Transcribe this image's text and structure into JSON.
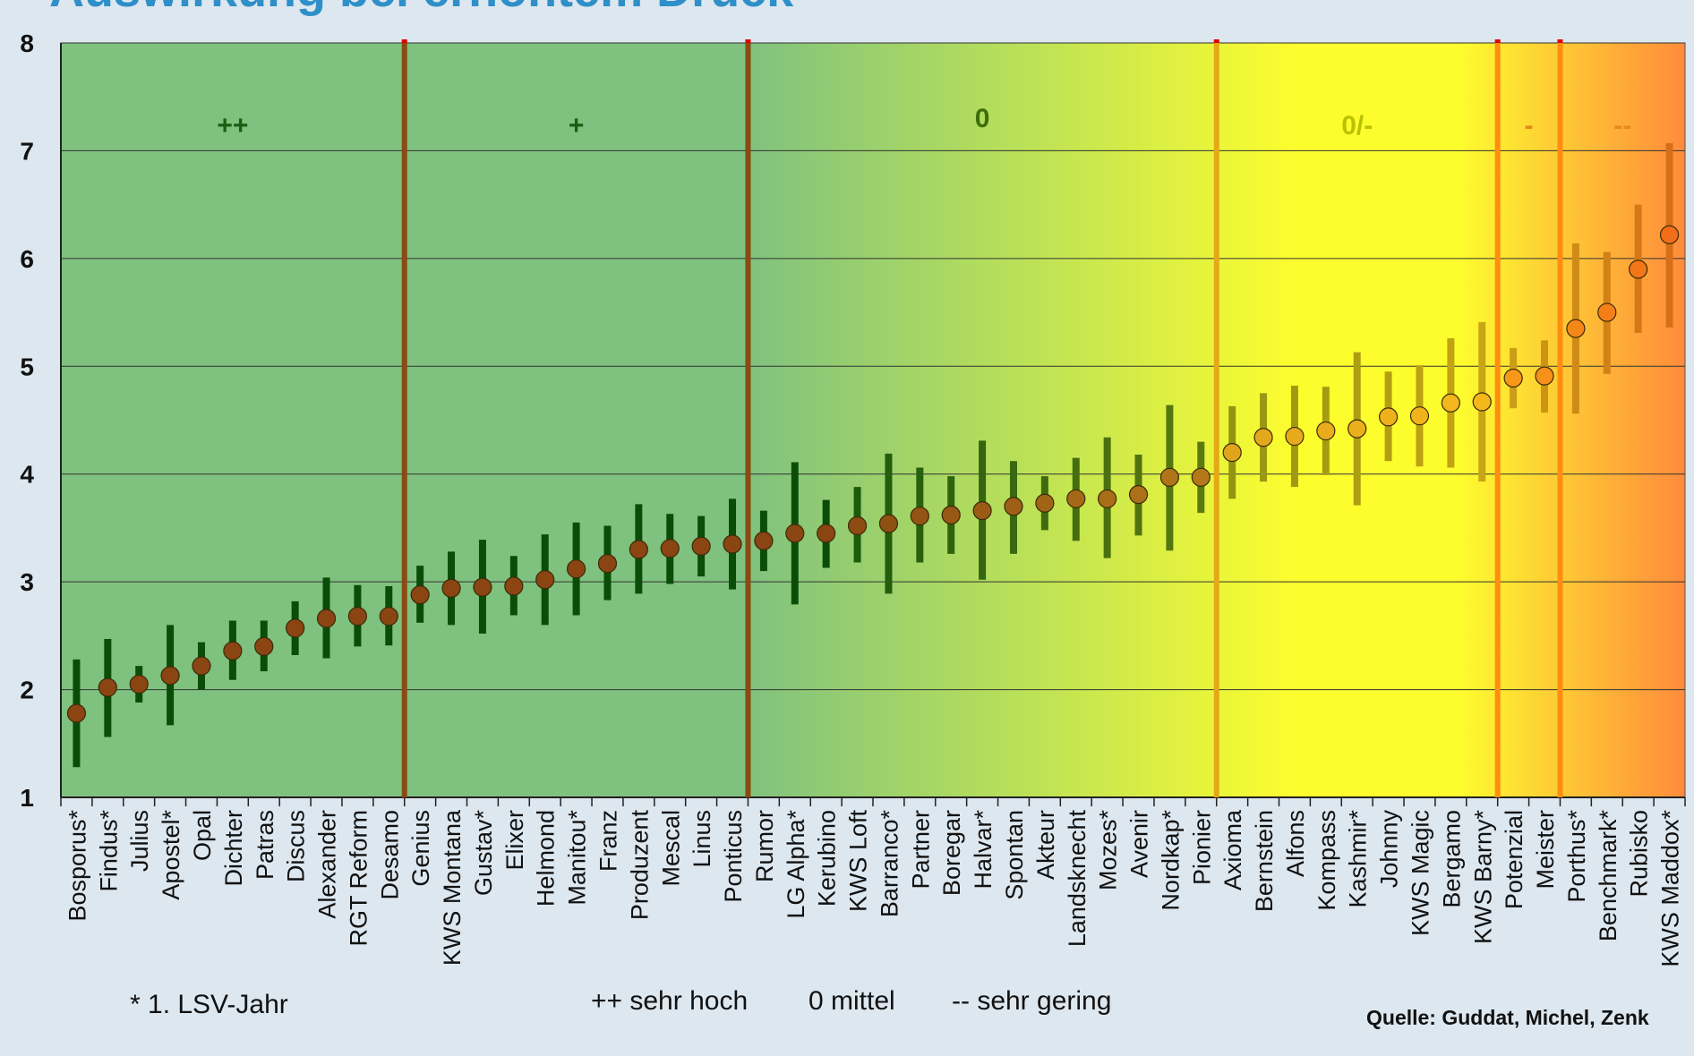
{
  "title_fragment": "Auswirkung bei erhöhtem Druck",
  "chart_data": {
    "type": "scatter",
    "variant": "dot-with-range",
    "categories": [
      "Bosporus*",
      "Findus*",
      "Julius",
      "Apostel*",
      "Opal",
      "Dichter",
      "Patras",
      "Discus",
      "Alexander",
      "RGT Reform",
      "Desamo",
      "Genius",
      "KWS Montana",
      "Gustav*",
      "Elixer",
      "Helmond",
      "Manitou*",
      "Franz",
      "Produzent",
      "Mescal",
      "Linus",
      "Ponticus",
      "Rumor",
      "LG Alpha*",
      "Kerubino",
      "KWS Loft",
      "Barranco*",
      "Partner",
      "Boregar",
      "Halvar*",
      "Spontan",
      "Akteur",
      "Landsknecht",
      "Mozes*",
      "Avenir",
      "Nordkap*",
      "Pionier",
      "Axioma",
      "Bernstein",
      "Alfons",
      "Kompass",
      "Kashmir*",
      "Johnny",
      "KWS Magic",
      "Bergamo",
      "KWS Barny*",
      "Potenzial",
      "Meister",
      "Porthus*",
      "Benchmark*",
      "Rubisko",
      "KWS Maddox*"
    ],
    "values": [
      1.78,
      2.02,
      2.05,
      2.13,
      2.22,
      2.36,
      2.4,
      2.57,
      2.66,
      2.68,
      2.68,
      2.88,
      2.94,
      2.95,
      2.96,
      3.02,
      3.12,
      3.17,
      3.3,
      3.31,
      3.33,
      3.35,
      3.38,
      3.45,
      3.45,
      3.52,
      3.54,
      3.61,
      3.62,
      3.66,
      3.7,
      3.73,
      3.77,
      3.77,
      3.81,
      3.97,
      3.97,
      4.2,
      4.34,
      4.35,
      4.4,
      4.42,
      4.53,
      4.54,
      4.66,
      4.67,
      4.89,
      4.91,
      5.35,
      5.5,
      5.9,
      6.22
    ],
    "low": [
      1.28,
      1.56,
      1.88,
      1.67,
      2.0,
      2.09,
      2.17,
      2.32,
      2.29,
      2.4,
      2.41,
      2.62,
      2.6,
      2.52,
      2.69,
      2.6,
      2.69,
      2.83,
      2.89,
      2.98,
      3.05,
      2.93,
      3.1,
      2.79,
      3.13,
      3.18,
      2.89,
      3.18,
      3.26,
      3.02,
      3.26,
      3.48,
      3.38,
      3.22,
      3.43,
      3.29,
      3.64,
      3.77,
      3.93,
      3.88,
      3.99,
      3.71,
      4.12,
      4.07,
      4.06,
      3.93,
      4.61,
      4.57,
      4.56,
      4.93,
      5.31,
      5.36
    ],
    "high": [
      2.28,
      2.47,
      2.22,
      2.6,
      2.44,
      2.64,
      2.64,
      2.82,
      3.04,
      2.97,
      2.96,
      3.15,
      3.28,
      3.39,
      3.24,
      3.44,
      3.55,
      3.52,
      3.72,
      3.63,
      3.61,
      3.77,
      3.66,
      4.11,
      3.76,
      3.88,
      4.19,
      4.06,
      3.98,
      4.31,
      4.12,
      3.98,
      4.15,
      4.34,
      4.18,
      4.64,
      4.3,
      4.63,
      4.75,
      4.82,
      4.81,
      5.13,
      4.95,
      5.01,
      5.26,
      5.41,
      5.17,
      5.24,
      6.14,
      6.06,
      6.5,
      7.07
    ],
    "ylim": [
      1,
      8
    ],
    "yticks": [
      1,
      2,
      3,
      4,
      5,
      6,
      7,
      8
    ],
    "grid": true,
    "groups": [
      {
        "label": "++",
        "from": 0,
        "to": 10
      },
      {
        "label": "+",
        "from": 11,
        "to": 21
      },
      {
        "label": "0",
        "from": 22,
        "to": 36
      },
      {
        "label": "0/-",
        "from": 37,
        "to": 45
      },
      {
        "label": "-",
        "from": 46,
        "to": 47
      },
      {
        "label": "--",
        "from": 48,
        "to": 51
      }
    ],
    "colors": {
      "dark_green": "#7fc17f",
      "light_green": "#bde256",
      "yellow": "#fdfd2e",
      "orange": "#ff8b3c",
      "divider_brown": "#8b4a12",
      "divider_gold": "#e6a817",
      "divider_orange": "#ff8d10",
      "bar_dark": "#0a4d08"
    }
  },
  "legend": {
    "first_year_note": "* 1. LSV-Jahr",
    "scale_high": "++ sehr hoch",
    "scale_mid": "0 mittel",
    "scale_low": "--  sehr gering"
  },
  "source": "Quelle: Guddat, Michel, Zenk"
}
